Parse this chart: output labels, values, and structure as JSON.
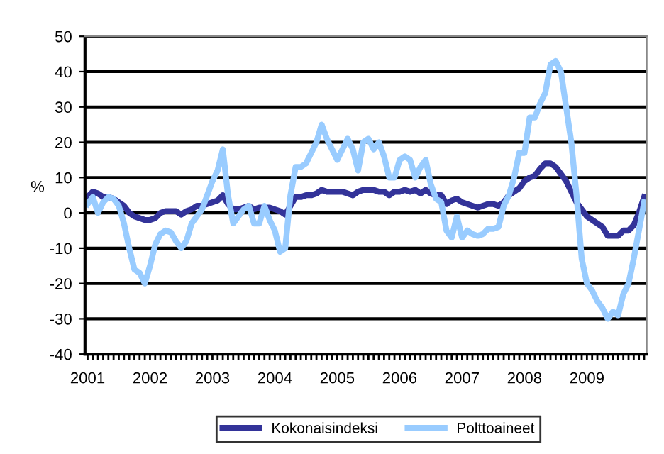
{
  "chart_data": {
    "type": "line",
    "ylabel": "%",
    "categories": [
      "2001",
      null,
      null,
      null,
      null,
      null,
      null,
      null,
      null,
      null,
      null,
      null,
      "2002",
      null,
      null,
      null,
      null,
      null,
      null,
      null,
      null,
      null,
      null,
      null,
      "2003",
      null,
      null,
      null,
      null,
      null,
      null,
      null,
      null,
      null,
      null,
      null,
      "2004",
      null,
      null,
      null,
      null,
      null,
      null,
      null,
      null,
      null,
      null,
      null,
      "2005",
      null,
      null,
      null,
      null,
      null,
      null,
      null,
      null,
      null,
      null,
      null,
      "2006",
      null,
      null,
      null,
      null,
      null,
      null,
      null,
      null,
      null,
      null,
      null,
      "2007",
      null,
      null,
      null,
      null,
      null,
      null,
      null,
      null,
      null,
      null,
      null,
      "2008",
      null,
      null,
      null,
      null,
      null,
      null,
      null,
      null,
      null,
      null,
      null,
      "2009",
      null,
      null,
      null,
      null,
      null,
      null,
      null,
      null,
      null,
      null,
      null
    ],
    "series": [
      {
        "name": "Kokonaisindeksi",
        "color": "#333399",
        "values": [
          4.5,
          6,
          5.5,
          4.5,
          4.5,
          4,
          3,
          2,
          0,
          -1,
          -1.5,
          -2,
          -2,
          -1.5,
          0,
          0.5,
          0.5,
          0.5,
          -0.5,
          0.5,
          1,
          2,
          2,
          2.5,
          3,
          3.5,
          5,
          2.5,
          1,
          1,
          1.5,
          2,
          1,
          1.5,
          1.5,
          1.5,
          1,
          0.5,
          -0.5,
          2,
          4.5,
          4.5,
          5,
          5,
          5.5,
          6.5,
          6,
          6,
          6,
          6,
          5.5,
          5,
          6,
          6.5,
          6.5,
          6.5,
          6,
          6,
          5,
          6,
          6,
          6.5,
          6,
          6.5,
          5.5,
          6.5,
          5.5,
          5,
          5,
          2.5,
          3.5,
          4,
          3,
          2.5,
          2,
          1.5,
          2,
          2.5,
          2.5,
          2,
          3,
          5,
          6,
          7,
          9,
          10,
          10.5,
          12.5,
          14,
          14,
          13,
          11,
          9,
          6,
          3,
          1,
          -1,
          -2,
          -3,
          -4,
          -6.5,
          -6.5,
          -6.5,
          -5,
          -5,
          -3.5,
          0,
          4.5
        ]
      },
      {
        "name": "Polttoaineet",
        "color": "#99ccff",
        "values": [
          2.5,
          4.5,
          0,
          3,
          4.5,
          4,
          2,
          -3,
          -10,
          -16,
          -17,
          -20,
          -15,
          -9,
          -6,
          -5,
          -5.5,
          -8,
          -10,
          -8,
          -3,
          -1,
          1,
          5,
          9,
          12,
          18,
          5,
          -3,
          -1,
          1,
          2,
          -3,
          -3,
          2,
          -2,
          -5,
          -11,
          -10,
          5,
          13,
          13,
          14,
          17,
          20,
          25,
          21,
          18,
          15,
          18,
          21,
          18,
          12,
          20,
          21,
          18,
          20,
          16,
          10,
          10,
          15,
          16,
          15,
          10,
          13,
          15,
          8,
          4,
          3,
          -5,
          -7,
          -1,
          -7,
          -5,
          -6,
          -6.5,
          -6,
          -4.5,
          -4.5,
          -4,
          2,
          5,
          10,
          17,
          17,
          27,
          27,
          31,
          34,
          42,
          43,
          40,
          30,
          20,
          5,
          -13,
          -20,
          -22,
          -25,
          -27,
          -30,
          -28,
          -29,
          -23,
          -20,
          -13,
          -5,
          3
        ]
      }
    ],
    "ylim": [
      -40,
      50
    ],
    "yticks": [
      -40,
      -30,
      -20,
      -10,
      0,
      10,
      20,
      30,
      40,
      50
    ],
    "grid": "y",
    "legend": "bottom",
    "marker": "none",
    "line_style": "solid"
  }
}
